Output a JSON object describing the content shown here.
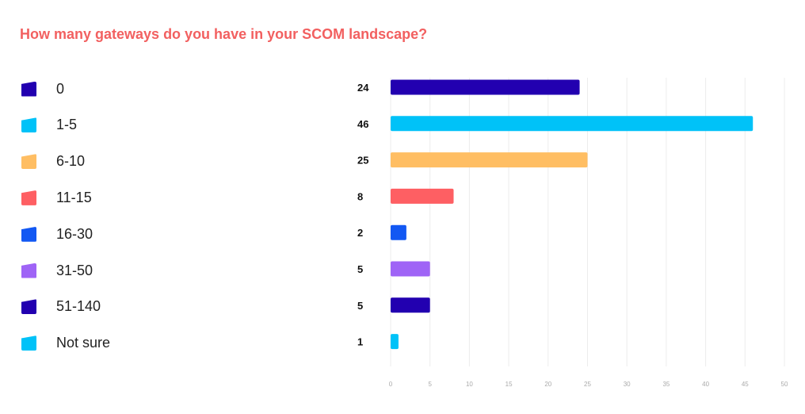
{
  "title": "How many gateways do you have in your SCOM landscape?",
  "chart_data": {
    "type": "bar",
    "orientation": "horizontal",
    "title": "How many gateways do you have in your SCOM landscape?",
    "categories": [
      "0",
      "1-5",
      "6-10",
      "11-15",
      "16-30",
      "31-50",
      "51-140",
      "Not sure"
    ],
    "values": [
      24,
      46,
      25,
      8,
      2,
      5,
      5,
      1
    ],
    "colors": [
      "#2200b0",
      "#00c2f8",
      "#ffbe63",
      "#fe5f63",
      "#1258f3",
      "#9f64f6",
      "#2200b0",
      "#00c2f8"
    ],
    "xlim": [
      0,
      50
    ],
    "x_ticks": [
      0,
      5,
      10,
      15,
      20,
      25,
      30,
      35,
      40,
      45,
      50
    ],
    "grid": true,
    "legend": "left"
  }
}
